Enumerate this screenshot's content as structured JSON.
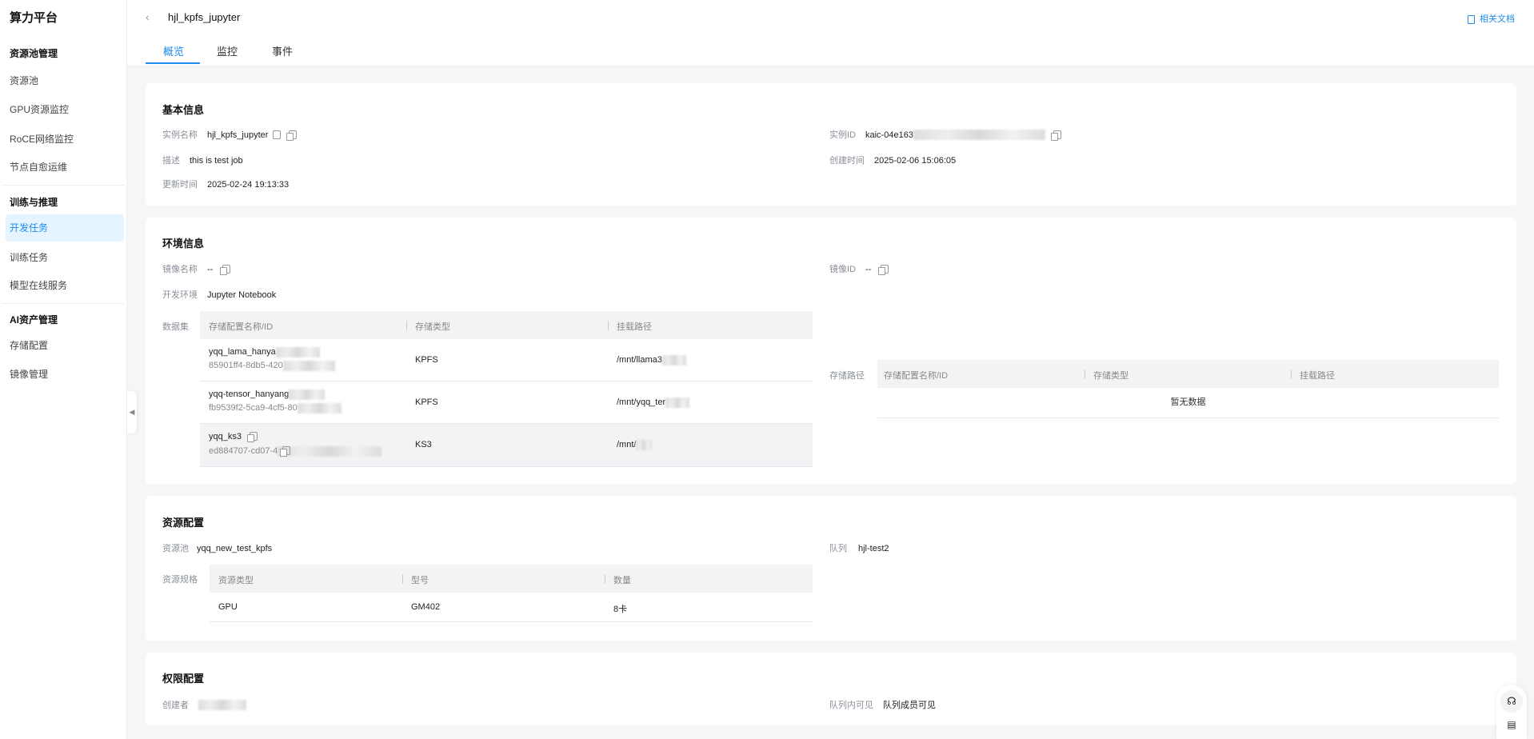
{
  "sidebar": {
    "brand": "算力平台",
    "groups": [
      {
        "title": "资源池管理",
        "items": [
          "资源池",
          "GPU资源监控",
          "RoCE网络监控",
          "节点自愈运维"
        ]
      },
      {
        "title": "训练与推理",
        "items": [
          "开发任务",
          "训练任务",
          "模型在线服务"
        ]
      },
      {
        "title": "AI资产管理",
        "items": [
          "存储配置",
          "镜像管理"
        ]
      }
    ],
    "active": "开发任务"
  },
  "header": {
    "title": "hjl_kpfs_jupyter",
    "doc_link": "相关文档",
    "tabs": [
      "概览",
      "监控",
      "事件"
    ],
    "active_tab": "概览"
  },
  "basic": {
    "title": "基本信息",
    "name_label": "实例名称",
    "name": "hjl_kpfs_jupyter",
    "desc_label": "描述",
    "desc": "this is test job",
    "updated_label": "更新时间",
    "updated": "2025-02-24 19:13:33",
    "id_label": "实例ID",
    "id": "kaic-04e163",
    "created_label": "创建时间",
    "created": "2025-02-06 15:06:05"
  },
  "env": {
    "title": "环境信息",
    "image_name_label": "镜像名称",
    "image_name": "--",
    "dev_env_label": "开发环境",
    "dev_env": "Jupyter Notebook",
    "image_id_label": "镜像ID",
    "image_id": "--",
    "dataset_label": "数据集",
    "columns": [
      "存储配置名称/ID",
      "存储类型",
      "挂载路径"
    ],
    "datasets": [
      {
        "name": "yqq_lama_hanya",
        "id": "85901ff4-8db5-420",
        "type": "KPFS",
        "path": "/mnt/llama3"
      },
      {
        "name": "yqq-tensor_hanyang",
        "id": "fb9539f2-5ca9-4cf5-80",
        "type": "KPFS",
        "path": "/mnt/yqq_ter"
      },
      {
        "name": "yqq_ks3",
        "id": "ed884707-cd07-4",
        "type": "KS3",
        "path": "/mnt/"
      }
    ],
    "storage_label": "存储路径",
    "storage_empty": "暂无数据"
  },
  "resource": {
    "title": "资源配置",
    "pool_label": "资源池",
    "pool": "yqq_new_test_kpfs",
    "queue_label": "队列",
    "queue": "hjl-test2",
    "spec_label": "资源规格",
    "columns": [
      "资源类型",
      "型号",
      "数量"
    ],
    "rows": [
      [
        "GPU",
        "GM402",
        "8卡"
      ]
    ]
  },
  "perm": {
    "title": "权限配置",
    "creator_label": "创建者",
    "visible_label": "队列内可见",
    "visible": "队列成员可见"
  },
  "colors": {
    "accent": "#1b8bf0",
    "background": "#f5f6f8"
  }
}
